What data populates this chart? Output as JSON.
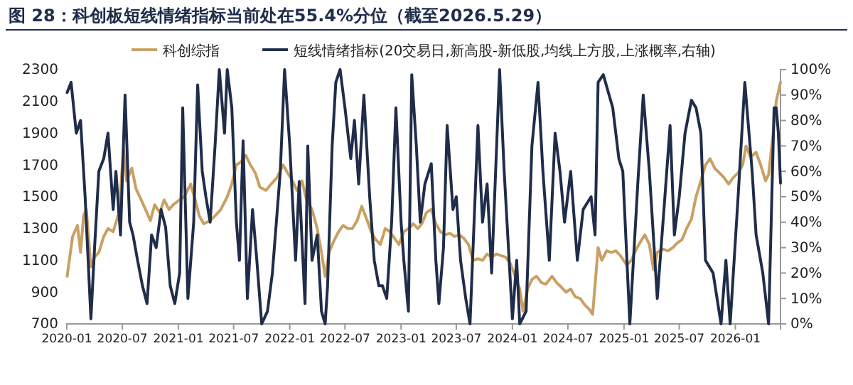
{
  "chart_data": {
    "type": "line",
    "title": "图 28：科创板短线情绪指标当前处在55.4%分位（截至2026.5.29）",
    "legend": "top",
    "grid": false,
    "xlim": [
      "2020-01-01",
      "2026-05-29"
    ],
    "xticks": [
      "2020-01",
      "2020-07",
      "2021-01",
      "2021-07",
      "2022-01",
      "2022-07",
      "2023-01",
      "2023-07",
      "2024-01",
      "2024-07",
      "2025-01",
      "2025-07",
      "2026-01"
    ],
    "ylim": [
      700,
      2300
    ],
    "yticks": [
      700,
      900,
      1100,
      1300,
      1500,
      1700,
      1900,
      2100,
      2300
    ],
    "y2lim": [
      0,
      100
    ],
    "y2ticks": [
      {
        "value": 0,
        "label": "0%"
      },
      {
        "value": 10,
        "label": "10%"
      },
      {
        "value": 20,
        "label": "20%"
      },
      {
        "value": 30,
        "label": "30%"
      },
      {
        "value": 40,
        "label": "40%"
      },
      {
        "value": 50,
        "label": "50%"
      },
      {
        "value": 60,
        "label": "60%"
      },
      {
        "value": 70,
        "label": "70%"
      },
      {
        "value": 80,
        "label": "80%"
      },
      {
        "value": 90,
        "label": "90%"
      },
      {
        "value": 100,
        "label": "100%"
      }
    ],
    "series": [
      {
        "name": "科创综指",
        "color": "#c9a063",
        "x": [
          "2020-01-02",
          "2020-01-20",
          "2020-02-05",
          "2020-02-15",
          "2020-02-25",
          "2020-03-05",
          "2020-03-20",
          "2020-04-01",
          "2020-04-15",
          "2020-05-01",
          "2020-05-15",
          "2020-06-01",
          "2020-06-20",
          "2020-07-05",
          "2020-07-15",
          "2020-08-01",
          "2020-08-15",
          "2020-09-01",
          "2020-09-15",
          "2020-10-01",
          "2020-10-15",
          "2020-11-01",
          "2020-11-15",
          "2020-12-01",
          "2020-12-15",
          "2021-01-05",
          "2021-01-20",
          "2021-02-10",
          "2021-02-25",
          "2021-03-10",
          "2021-03-25",
          "2021-04-15",
          "2021-05-01",
          "2021-05-20",
          "2021-06-10",
          "2021-06-25",
          "2021-07-10",
          "2021-07-25",
          "2021-08-10",
          "2021-08-25",
          "2021-09-10",
          "2021-09-25",
          "2021-10-15",
          "2021-11-01",
          "2021-11-20",
          "2021-12-10",
          "2021-12-25",
          "2022-01-10",
          "2022-01-25",
          "2022-02-10",
          "2022-02-25",
          "2022-03-15",
          "2022-04-01",
          "2022-04-15",
          "2022-04-27",
          "2022-05-10",
          "2022-05-25",
          "2022-06-10",
          "2022-06-25",
          "2022-07-10",
          "2022-07-25",
          "2022-08-10",
          "2022-08-25",
          "2022-09-10",
          "2022-09-25",
          "2022-10-10",
          "2022-10-25",
          "2022-11-10",
          "2022-11-25",
          "2022-12-10",
          "2022-12-25",
          "2023-01-10",
          "2023-01-25",
          "2023-02-10",
          "2023-02-25",
          "2023-03-10",
          "2023-03-25",
          "2023-04-10",
          "2023-04-25",
          "2023-05-10",
          "2023-05-25",
          "2023-06-10",
          "2023-06-25",
          "2023-07-10",
          "2023-07-25",
          "2023-08-10",
          "2023-08-25",
          "2023-09-10",
          "2023-09-25",
          "2023-10-10",
          "2023-10-25",
          "2023-11-10",
          "2023-11-25",
          "2023-12-10",
          "2023-12-25",
          "2024-01-10",
          "2024-01-25",
          "2024-02-05",
          "2024-02-20",
          "2024-03-05",
          "2024-03-20",
          "2024-04-05",
          "2024-04-20",
          "2024-05-10",
          "2024-05-25",
          "2024-06-10",
          "2024-06-25",
          "2024-07-10",
          "2024-07-25",
          "2024-08-10",
          "2024-08-25",
          "2024-09-10",
          "2024-09-20",
          "2024-10-08",
          "2024-10-20",
          "2024-11-05",
          "2024-11-20",
          "2024-12-05",
          "2024-12-20",
          "2025-01-10",
          "2025-01-25",
          "2025-02-10",
          "2025-02-25",
          "2025-03-10",
          "2025-03-25",
          "2025-04-08",
          "2025-04-20",
          "2025-05-10",
          "2025-05-25",
          "2025-06-10",
          "2025-06-25",
          "2025-07-10",
          "2025-07-25",
          "2025-08-10",
          "2025-08-25",
          "2025-09-10",
          "2025-09-25",
          "2025-10-10",
          "2025-10-25",
          "2025-11-10",
          "2025-11-25",
          "2025-12-10",
          "2025-12-25",
          "2026-01-10",
          "2026-01-25",
          "2026-02-05",
          "2026-02-20",
          "2026-03-10",
          "2026-03-25",
          "2026-04-10",
          "2026-04-20",
          "2026-05-05",
          "2026-05-15",
          "2026-05-29"
        ],
        "values": [
          1000,
          1250,
          1320,
          1150,
          1380,
          1420,
          1060,
          1120,
          1150,
          1250,
          1300,
          1280,
          1400,
          1800,
          1600,
          1680,
          1550,
          1480,
          1420,
          1350,
          1450,
          1400,
          1480,
          1420,
          1450,
          1480,
          1500,
          1580,
          1480,
          1380,
          1330,
          1350,
          1380,
          1420,
          1500,
          1580,
          1700,
          1720,
          1760,
          1700,
          1650,
          1560,
          1540,
          1580,
          1620,
          1700,
          1650,
          1600,
          1540,
          1600,
          1480,
          1420,
          1300,
          1150,
          1000,
          1150,
          1220,
          1280,
          1320,
          1300,
          1300,
          1350,
          1440,
          1360,
          1280,
          1230,
          1200,
          1300,
          1280,
          1240,
          1200,
          1280,
          1300,
          1330,
          1300,
          1330,
          1400,
          1420,
          1330,
          1280,
          1260,
          1270,
          1250,
          1260,
          1240,
          1200,
          1100,
          1110,
          1100,
          1140,
          1120,
          1140,
          1130,
          1120,
          1080,
          1000,
          920,
          780,
          920,
          980,
          1000,
          960,
          950,
          1000,
          960,
          930,
          900,
          920,
          870,
          860,
          820,
          790,
          760,
          1180,
          1100,
          1160,
          1150,
          1160,
          1130,
          1070,
          1100,
          1170,
          1220,
          1260,
          1200,
          1040,
          1150,
          1170,
          1160,
          1180,
          1210,
          1230,
          1300,
          1360,
          1500,
          1600,
          1700,
          1740,
          1680,
          1650,
          1620,
          1580,
          1620,
          1650,
          1700,
          1820,
          1750,
          1780,
          1700,
          1600,
          1640,
          1900,
          2100,
          2220
        ]
      },
      {
        "name": "短线情绪指标(20交易日,新高股-新低股,均线上方股,上涨概率,右轴)",
        "color": "#1f2d4a",
        "axis": "y2",
        "x": [
          "2020-01-02",
          "2020-01-15",
          "2020-02-01",
          "2020-02-15",
          "2020-03-01",
          "2020-03-20",
          "2020-04-01",
          "2020-04-15",
          "2020-05-01",
          "2020-05-15",
          "2020-06-01",
          "2020-06-10",
          "2020-06-25",
          "2020-07-10",
          "2020-07-25",
          "2020-08-05",
          "2020-08-20",
          "2020-09-05",
          "2020-09-20",
          "2020-10-05",
          "2020-10-20",
          "2020-11-05",
          "2020-11-20",
          "2020-12-05",
          "2020-12-20",
          "2021-01-05",
          "2021-01-15",
          "2021-02-01",
          "2021-02-20",
          "2021-03-05",
          "2021-03-20",
          "2021-04-01",
          "2021-04-15",
          "2021-05-01",
          "2021-05-15",
          "2021-06-01",
          "2021-06-10",
          "2021-06-25",
          "2021-07-10",
          "2021-07-20",
          "2021-08-01",
          "2021-08-15",
          "2021-09-01",
          "2021-09-15",
          "2021-10-01",
          "2021-10-20",
          "2021-11-05",
          "2021-12-01",
          "2021-12-15",
          "2022-01-01",
          "2022-01-20",
          "2022-02-01",
          "2022-02-20",
          "2022-03-01",
          "2022-03-15",
          "2022-04-01",
          "2022-04-15",
          "2022-04-27",
          "2022-05-05",
          "2022-05-20",
          "2022-06-01",
          "2022-06-15",
          "2022-07-01",
          "2022-07-20",
          "2022-08-01",
          "2022-08-15",
          "2022-09-01",
          "2022-09-20",
          "2022-10-05",
          "2022-10-20",
          "2022-11-01",
          "2022-11-15",
          "2022-12-01",
          "2022-12-15",
          "2023-01-01",
          "2023-01-10",
          "2023-01-25",
          "2023-02-05",
          "2023-02-20",
          "2023-03-05",
          "2023-03-20",
          "2023-04-10",
          "2023-04-25",
          "2023-05-05",
          "2023-05-20",
          "2023-06-01",
          "2023-06-20",
          "2023-07-01",
          "2023-07-15",
          "2023-08-01",
          "2023-08-15",
          "2023-09-10",
          "2023-09-25",
          "2023-10-10",
          "2023-10-25",
          "2023-11-20",
          "2023-12-05",
          "2024-01-01",
          "2024-01-15",
          "2024-01-25",
          "2024-02-15",
          "2024-03-05",
          "2024-03-25",
          "2024-04-10",
          "2024-05-01",
          "2024-05-20",
          "2024-06-05",
          "2024-06-20",
          "2024-07-10",
          "2024-08-01",
          "2024-08-20",
          "2024-09-15",
          "2024-09-28",
          "2024-10-08",
          "2024-10-25",
          "2024-11-25",
          "2024-12-15",
          "2024-12-28",
          "2025-01-20",
          "2025-02-15",
          "2025-03-05",
          "2025-03-25",
          "2025-04-20",
          "2025-05-15",
          "2025-06-01",
          "2025-06-15",
          "2025-07-01",
          "2025-07-20",
          "2025-08-10",
          "2025-08-25",
          "2025-09-10",
          "2025-09-25",
          "2025-10-20",
          "2025-11-15",
          "2025-12-01",
          "2025-12-15",
          "2026-01-10",
          "2026-02-01",
          "2026-02-25",
          "2026-03-10",
          "2026-04-01",
          "2026-04-20",
          "2026-05-08",
          "2026-05-15",
          "2026-05-22",
          "2026-05-29"
        ],
        "values": [
          91,
          95,
          75,
          80,
          50,
          2,
          30,
          60,
          65,
          75,
          45,
          60,
          35,
          90,
          40,
          35,
          25,
          15,
          8,
          35,
          30,
          45,
          38,
          15,
          8,
          20,
          85,
          10,
          40,
          94,
          60,
          50,
          40,
          70,
          100,
          75,
          100,
          85,
          40,
          25,
          72,
          10,
          45,
          25,
          0,
          5,
          20,
          60,
          100,
          70,
          25,
          56,
          8,
          70,
          25,
          35,
          5,
          0,
          15,
          70,
          95,
          100,
          85,
          65,
          80,
          55,
          90,
          50,
          25,
          15,
          15,
          10,
          40,
          85,
          40,
          25,
          5,
          98,
          70,
          40,
          55,
          63,
          25,
          8,
          30,
          78,
          45,
          50,
          25,
          10,
          0,
          78,
          40,
          55,
          20,
          100,
          60,
          2,
          25,
          0,
          5,
          70,
          95,
          60,
          25,
          75,
          60,
          40,
          60,
          25,
          45,
          50,
          35,
          95,
          98,
          85,
          65,
          60,
          0,
          55,
          90,
          60,
          10,
          50,
          78,
          35,
          50,
          75,
          88,
          85,
          75,
          25,
          20,
          0,
          25,
          0,
          50,
          95,
          60,
          35,
          20,
          0,
          85,
          85,
          75,
          55.4
        ]
      }
    ]
  }
}
